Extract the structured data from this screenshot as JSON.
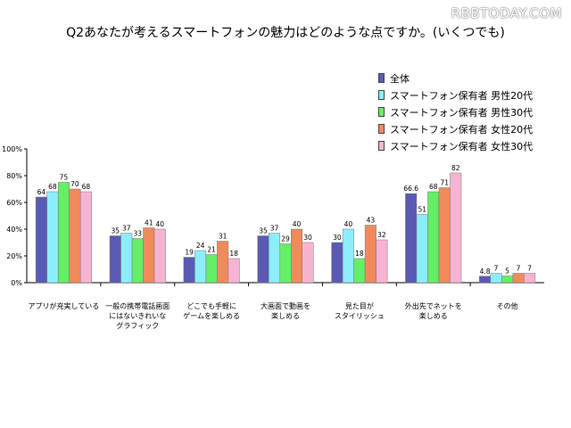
{
  "watermark": "RBBTODAY.COM",
  "chart_data": {
    "type": "bar",
    "title": "Q2あなたが考えるスマートフォンの魅力はどのような点ですか。(いくつでも)",
    "categories": [
      [
        "アプリが充実している"
      ],
      [
        "一般の携帯電話画面",
        "にはないきれいな",
        "グラフィック"
      ],
      [
        "どこでも手軽に",
        "ゲームを楽しめる"
      ],
      [
        "大画面で動画を",
        "楽しめる"
      ],
      [
        "見た目が",
        "スタイリッシュ"
      ],
      [
        "外出先でネットを",
        "楽しめる"
      ],
      [
        "その他"
      ]
    ],
    "series": [
      {
        "name": "全体",
        "color": "#5a5ab4",
        "values": [
          64,
          35,
          19,
          35,
          30,
          66.6,
          4.8
        ],
        "labels": [
          "64",
          "35",
          "19",
          "35",
          "30",
          "66.6",
          "4.8"
        ]
      },
      {
        "name": "スマートフォン保有者 男性20代",
        "color": "#8ceefa",
        "values": [
          68,
          37,
          24,
          37,
          40,
          51,
          7
        ],
        "labels": [
          "68",
          "37",
          "24",
          "37",
          "40",
          "51",
          "7"
        ]
      },
      {
        "name": "スマートフォン保有者 男性30代",
        "color": "#66ee66",
        "values": [
          75,
          33,
          21,
          29,
          18,
          68,
          5
        ],
        "labels": [
          "75",
          "33",
          "21",
          "29",
          "18",
          "68",
          "5"
        ]
      },
      {
        "name": "スマートフォン保有者 女性20代",
        "color": "#f08a5a",
        "values": [
          70,
          41,
          31,
          40,
          43,
          71,
          7
        ],
        "labels": [
          "70",
          "41",
          "31",
          "40",
          "43",
          "71",
          "7"
        ]
      },
      {
        "name": "スマートフォン保有者 女性30代",
        "color": "#f6b4d2",
        "values": [
          68,
          40,
          18,
          30,
          32,
          82,
          7
        ],
        "labels": [
          "68",
          "40",
          "18",
          "30",
          "32",
          "82",
          "7"
        ]
      }
    ],
    "yticks": [
      "0%",
      "20%",
      "40%",
      "60%",
      "80%",
      "100%"
    ],
    "ylim": [
      0,
      100
    ],
    "grid": false,
    "legend_position": "top-right"
  }
}
